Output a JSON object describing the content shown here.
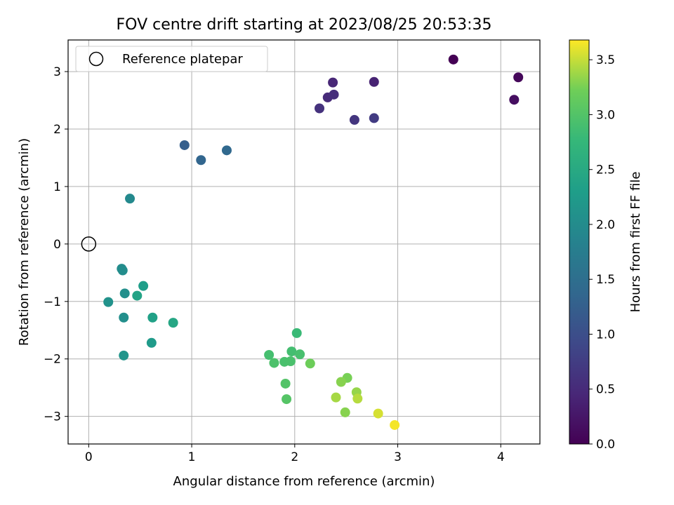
{
  "chart_data": {
    "type": "scatter",
    "title": "FOV centre drift starting at 2023/08/25 20:53:35",
    "xlabel": "Angular distance from reference (arcmin)",
    "ylabel": "Rotation from reference (arcmin)",
    "xlim": [
      -0.2,
      4.38
    ],
    "ylim": [
      -3.48,
      3.55
    ],
    "x_ticks": [
      0,
      1,
      2,
      3,
      4
    ],
    "y_ticks": [
      -3,
      -2,
      -1,
      0,
      1,
      2,
      3
    ],
    "grid": true,
    "legend": {
      "placement": "top-left",
      "entries": [
        "Reference platepar"
      ]
    },
    "reference_point": {
      "x": 0,
      "y": 0
    },
    "colorbar": {
      "label": "Hours from first FF file",
      "range": [
        0,
        3.68
      ],
      "ticks": [
        0.0,
        0.5,
        1.0,
        1.5,
        2.0,
        2.5,
        3.0,
        3.5
      ],
      "colormap": "viridis"
    },
    "points": [
      {
        "x": 3.54,
        "y": 3.21,
        "c": 0.0
      },
      {
        "x": 4.17,
        "y": 2.9,
        "c": 0.08
      },
      {
        "x": 4.13,
        "y": 2.51,
        "c": 0.15
      },
      {
        "x": 2.77,
        "y": 2.82,
        "c": 0.4
      },
      {
        "x": 2.37,
        "y": 2.81,
        "c": 0.45
      },
      {
        "x": 2.32,
        "y": 2.55,
        "c": 0.5
      },
      {
        "x": 2.38,
        "y": 2.6,
        "c": 0.55
      },
      {
        "x": 2.24,
        "y": 2.36,
        "c": 0.6
      },
      {
        "x": 2.58,
        "y": 2.16,
        "c": 0.65
      },
      {
        "x": 2.77,
        "y": 2.19,
        "c": 0.72
      },
      {
        "x": 0.93,
        "y": 1.72,
        "c": 1.25
      },
      {
        "x": 1.09,
        "y": 1.46,
        "c": 1.35
      },
      {
        "x": 1.34,
        "y": 1.63,
        "c": 1.4
      },
      {
        "x": 0.4,
        "y": 0.79,
        "c": 1.95
      },
      {
        "x": 0.32,
        "y": -0.43,
        "c": 2.0
      },
      {
        "x": 0.33,
        "y": -0.46,
        "c": 2.02
      },
      {
        "x": 0.35,
        "y": -0.86,
        "c": 2.05
      },
      {
        "x": 0.53,
        "y": -0.73,
        "c": 2.3
      },
      {
        "x": 0.47,
        "y": -0.9,
        "c": 2.4
      },
      {
        "x": 0.19,
        "y": -1.01,
        "c": 2.1
      },
      {
        "x": 0.34,
        "y": -1.28,
        "c": 2.05
      },
      {
        "x": 0.62,
        "y": -1.28,
        "c": 2.35
      },
      {
        "x": 0.82,
        "y": -1.37,
        "c": 2.45
      },
      {
        "x": 0.61,
        "y": -1.72,
        "c": 2.25
      },
      {
        "x": 0.34,
        "y": -1.94,
        "c": 2.15
      },
      {
        "x": 2.02,
        "y": -1.55,
        "c": 2.8
      },
      {
        "x": 1.75,
        "y": -1.93,
        "c": 2.9
      },
      {
        "x": 1.97,
        "y": -1.87,
        "c": 2.88
      },
      {
        "x": 2.05,
        "y": -1.92,
        "c": 2.92
      },
      {
        "x": 1.8,
        "y": -2.07,
        "c": 2.95
      },
      {
        "x": 1.9,
        "y": -2.05,
        "c": 2.93
      },
      {
        "x": 1.96,
        "y": -2.04,
        "c": 2.94
      },
      {
        "x": 2.15,
        "y": -2.08,
        "c": 3.2
      },
      {
        "x": 1.91,
        "y": -2.43,
        "c": 3.0
      },
      {
        "x": 1.92,
        "y": -2.7,
        "c": 3.02
      },
      {
        "x": 2.51,
        "y": -2.33,
        "c": 3.25
      },
      {
        "x": 2.45,
        "y": -2.4,
        "c": 3.3
      },
      {
        "x": 2.6,
        "y": -2.58,
        "c": 3.35
      },
      {
        "x": 2.4,
        "y": -2.67,
        "c": 3.4
      },
      {
        "x": 2.61,
        "y": -2.69,
        "c": 3.45
      },
      {
        "x": 2.49,
        "y": -2.93,
        "c": 3.3
      },
      {
        "x": 2.81,
        "y": -2.95,
        "c": 3.55
      },
      {
        "x": 2.97,
        "y": -3.15,
        "c": 3.65
      }
    ]
  }
}
